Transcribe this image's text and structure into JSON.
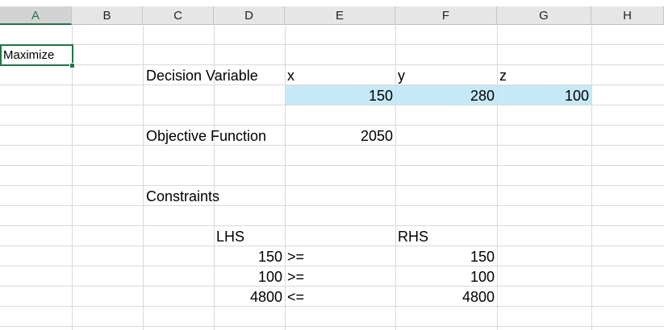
{
  "columns": [
    "A",
    "B",
    "C",
    "D",
    "E",
    "F",
    "G",
    "H"
  ],
  "selected_column": "A",
  "cells": {
    "A2": "Maximize",
    "C3": "Decision Variable",
    "E3": "x",
    "F3": "y",
    "G3": "z",
    "E4": "150",
    "F4": "280",
    "G4": "100",
    "C6": "Objective Function",
    "E6": "2050",
    "C9": "Constraints",
    "D11": "LHS",
    "F11": "RHS",
    "D12": "150",
    "E12": ">=",
    "F12": "150",
    "D13": "100",
    "E13": ">=",
    "F13": "100",
    "D14": "4800",
    "E14": "<=",
    "F14": "4800"
  },
  "colors": {
    "selection": "#217346",
    "highlight_fill": "#c6e9f7",
    "header_bg": "#e6e6e6"
  }
}
